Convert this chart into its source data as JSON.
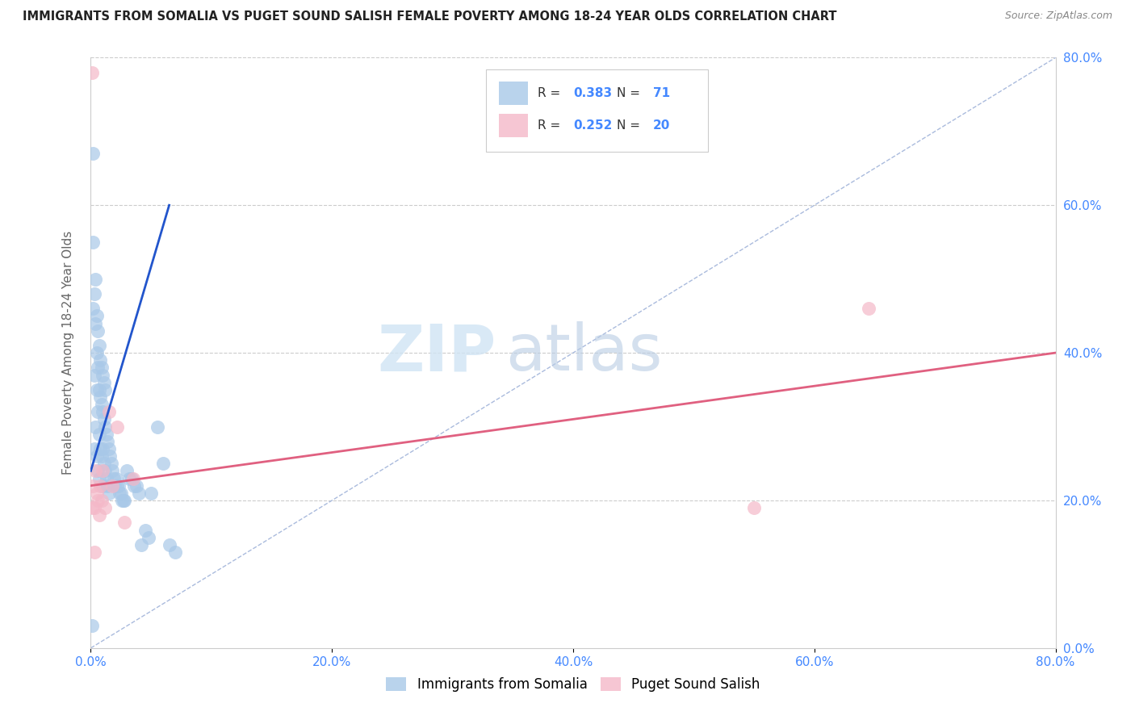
{
  "title": "IMMIGRANTS FROM SOMALIA VS PUGET SOUND SALISH FEMALE POVERTY AMONG 18-24 YEAR OLDS CORRELATION CHART",
  "source": "Source: ZipAtlas.com",
  "ylabel": "Female Poverty Among 18-24 Year Olds",
  "xlim": [
    0,
    0.8
  ],
  "ylim": [
    0,
    0.8
  ],
  "xticks": [
    0.0,
    0.2,
    0.4,
    0.6,
    0.8
  ],
  "yticks": [
    0.0,
    0.2,
    0.4,
    0.6,
    0.8
  ],
  "xticklabels": [
    "0.0%",
    "20.0%",
    "40.0%",
    "60.0%",
    "80.0%"
  ],
  "yticklabels": [
    "0.0%",
    "20.0%",
    "40.0%",
    "60.0%",
    "80.0%"
  ],
  "watermark_zip": "ZIP",
  "watermark_atlas": "atlas",
  "somalia_color": "#a8c8e8",
  "salish_color": "#f4b8c8",
  "somalia_line_color": "#2255cc",
  "salish_line_color": "#e06080",
  "tick_color": "#4488ff",
  "legend_somalia_label": "Immigrants from Somalia",
  "legend_salish_label": "Puget Sound Salish",
  "somalia_R": "0.383",
  "somalia_N": "71",
  "salish_R": "0.252",
  "salish_N": "20",
  "somalia_x": [
    0.001,
    0.002,
    0.002,
    0.003,
    0.003,
    0.004,
    0.004,
    0.005,
    0.005,
    0.005,
    0.006,
    0.006,
    0.006,
    0.007,
    0.007,
    0.007,
    0.008,
    0.008,
    0.009,
    0.009,
    0.01,
    0.01,
    0.01,
    0.011,
    0.011,
    0.012,
    0.012,
    0.013,
    0.013,
    0.014,
    0.014,
    0.015,
    0.015,
    0.016,
    0.017,
    0.018,
    0.019,
    0.02,
    0.021,
    0.022,
    0.023,
    0.024,
    0.025,
    0.026,
    0.027,
    0.028,
    0.03,
    0.032,
    0.034,
    0.036,
    0.038,
    0.04,
    0.042,
    0.045,
    0.048,
    0.05,
    0.055,
    0.06,
    0.065,
    0.07,
    0.002,
    0.003,
    0.004,
    0.005,
    0.006,
    0.007,
    0.008,
    0.009,
    0.01,
    0.011,
    0.012
  ],
  "somalia_y": [
    0.03,
    0.67,
    0.55,
    0.37,
    0.27,
    0.44,
    0.3,
    0.4,
    0.35,
    0.26,
    0.38,
    0.32,
    0.24,
    0.35,
    0.29,
    0.23,
    0.34,
    0.27,
    0.33,
    0.26,
    0.32,
    0.27,
    0.22,
    0.31,
    0.25,
    0.3,
    0.24,
    0.29,
    0.23,
    0.28,
    0.22,
    0.27,
    0.21,
    0.26,
    0.25,
    0.24,
    0.23,
    0.22,
    0.23,
    0.22,
    0.22,
    0.21,
    0.21,
    0.2,
    0.2,
    0.2,
    0.24,
    0.23,
    0.23,
    0.22,
    0.22,
    0.21,
    0.14,
    0.16,
    0.15,
    0.21,
    0.3,
    0.25,
    0.14,
    0.13,
    0.46,
    0.48,
    0.5,
    0.45,
    0.43,
    0.41,
    0.39,
    0.38,
    0.37,
    0.36,
    0.35
  ],
  "salish_x": [
    0.001,
    0.002,
    0.003,
    0.004,
    0.005,
    0.006,
    0.007,
    0.008,
    0.009,
    0.01,
    0.012,
    0.015,
    0.018,
    0.022,
    0.028,
    0.035,
    0.645,
    0.55,
    0.001,
    0.003
  ],
  "salish_y": [
    0.78,
    0.22,
    0.19,
    0.24,
    0.21,
    0.2,
    0.18,
    0.22,
    0.2,
    0.24,
    0.19,
    0.32,
    0.22,
    0.3,
    0.17,
    0.23,
    0.46,
    0.19,
    0.19,
    0.13
  ],
  "somalia_line_x": [
    0.0,
    0.065
  ],
  "somalia_line_y": [
    0.24,
    0.6
  ],
  "salish_line_x": [
    0.0,
    0.8
  ],
  "salish_line_y": [
    0.22,
    0.4
  ]
}
